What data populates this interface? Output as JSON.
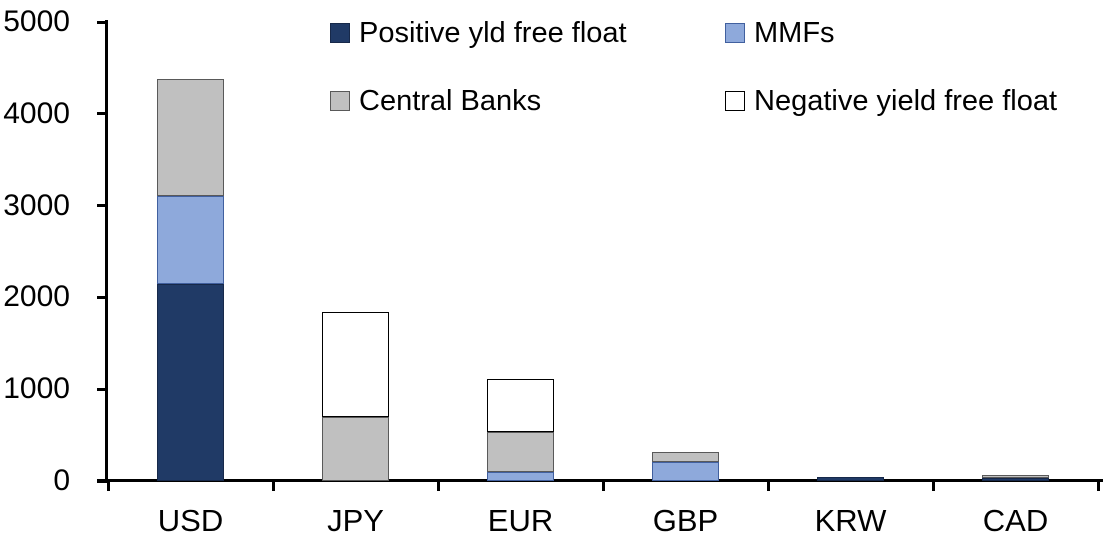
{
  "chart_data": {
    "type": "bar",
    "stacked": true,
    "title": "",
    "xlabel": "",
    "ylabel": "",
    "categories": [
      "USD",
      "JPY",
      "EUR",
      "GBP",
      "KRW",
      "CAD"
    ],
    "series": [
      {
        "name": "Positive yld free float",
        "color": "#203A66",
        "border": "#17294a",
        "values": [
          2150,
          0,
          0,
          0,
          45,
          35
        ]
      },
      {
        "name": "MMFs",
        "color": "#8EA9DB",
        "border": "#41609f",
        "values": [
          950,
          0,
          100,
          210,
          0,
          0
        ]
      },
      {
        "name": "Central Banks",
        "color": "#C0C0C0",
        "border": "#595959",
        "values": [
          1280,
          700,
          430,
          110,
          0,
          30
        ]
      },
      {
        "name": "Negative yield free float",
        "color": "#FFFFFF",
        "border": "#000000",
        "values": [
          0,
          1140,
          580,
          0,
          0,
          0
        ]
      }
    ],
    "totals": [
      4380,
      1840,
      1110,
      320,
      45,
      65
    ],
    "ylim": [
      0,
      5000
    ],
    "yticks": [
      0,
      1000,
      2000,
      3000,
      4000,
      5000
    ],
    "grid": false,
    "legend_position": "top-inside",
    "legend_rows": [
      [
        "Positive yld free float",
        "MMFs"
      ],
      [
        "Central Banks",
        "Negative yield free float"
      ]
    ]
  },
  "colors": {
    "background": "#FFFFFF",
    "axis": "#000000",
    "text": "#000000"
  }
}
